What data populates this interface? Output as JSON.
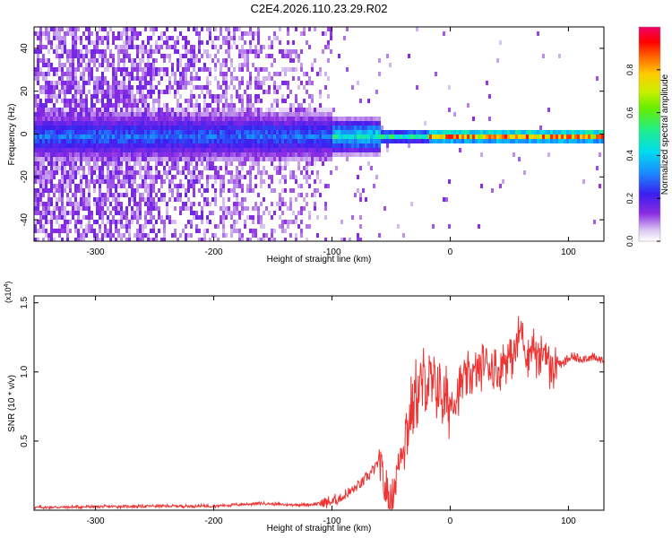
{
  "title": "C2E4.2026.110.23.29.R02",
  "chart_data": [
    {
      "type": "heatmap",
      "xlabel": "Height of straight line (km)",
      "ylabel": "Frequency (Hz)",
      "xlim": [
        -352,
        130
      ],
      "ylim": [
        -50,
        50
      ],
      "xticks": [
        -300,
        -200,
        -100,
        0,
        100
      ],
      "yticks": [
        -40,
        -20,
        0,
        20,
        40
      ],
      "colorbar": {
        "label": "Normalized spectral amplitude",
        "range": [
          0,
          1
        ],
        "ticks": [
          "0.0",
          "0.2",
          "0.4",
          "0.6",
          "0.8"
        ]
      }
    },
    {
      "type": "line",
      "xlabel": "Height of straight line (km)",
      "ylabel": "SNR (10 * v/v)",
      "exponent_label": "(x10",
      "exponent_power": "4",
      "exponent_close": ")",
      "xlim": [
        -352,
        130
      ],
      "ylim": [
        0,
        1.55
      ],
      "xticks": [
        -300,
        -200,
        -100,
        0,
        100
      ],
      "yticks": [
        "0.5",
        "1.0",
        "1.5"
      ],
      "color": "#ee3333",
      "series": [
        {
          "name": "SNR",
          "x": [
            -352,
            -300,
            -250,
            -200,
            -180,
            -160,
            -140,
            -120,
            -100,
            -90,
            -80,
            -70,
            -60,
            -55,
            -50,
            -45,
            -40,
            -35,
            -30,
            -25,
            -20,
            -15,
            -10,
            -5,
            0,
            5,
            10,
            15,
            20,
            25,
            30,
            35,
            40,
            45,
            50,
            55,
            60,
            65,
            70,
            75,
            80,
            85,
            90,
            95,
            100,
            110,
            120,
            130
          ],
          "values": [
            0.02,
            0.025,
            0.03,
            0.03,
            0.04,
            0.05,
            0.04,
            0.04,
            0.06,
            0.1,
            0.16,
            0.24,
            0.35,
            0.14,
            0.08,
            0.28,
            0.48,
            0.65,
            0.82,
            0.9,
            0.95,
            0.88,
            0.9,
            0.78,
            0.78,
            0.82,
            0.92,
            0.98,
            0.98,
            1.02,
            1.08,
            1.04,
            1.0,
            1.08,
            1.1,
            1.15,
            1.32,
            1.12,
            1.2,
            1.05,
            1.18,
            1.0,
            1.08,
            1.05,
            1.1,
            1.1,
            1.1,
            1.08
          ]
        }
      ]
    }
  ]
}
